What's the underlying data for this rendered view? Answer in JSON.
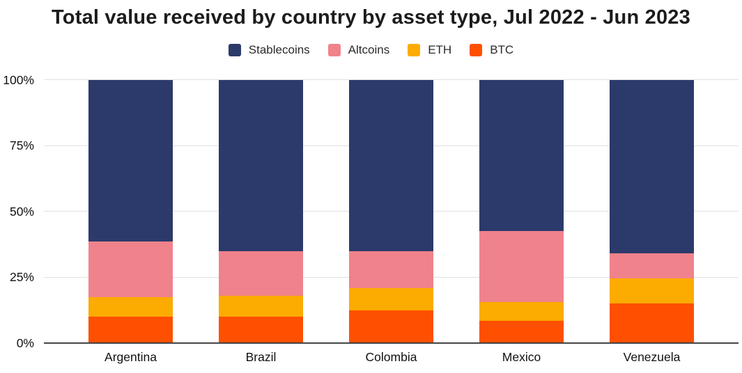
{
  "chart_data": {
    "type": "bar",
    "stacked": true,
    "percent_stacked": true,
    "title": "Total value received by country by asset type, Jul 2022 - Jun 2023",
    "xlabel": "",
    "ylabel": "",
    "ylim": [
      0,
      100
    ],
    "grid": "horizontal",
    "legend_position": "top-center",
    "categories": [
      "Argentina",
      "Brazil",
      "Colombia",
      "Mexico",
      "Venezuela"
    ],
    "series": [
      {
        "name": "Stablecoins",
        "color": "#2c3a6b",
        "values": [
          61.5,
          65.0,
          65.0,
          57.5,
          66.0
        ]
      },
      {
        "name": "Altcoins",
        "color": "#f0828c",
        "values": [
          21.0,
          17.0,
          14.0,
          27.0,
          9.5
        ]
      },
      {
        "name": "ETH",
        "color": "#fcab00",
        "values": [
          7.5,
          8.0,
          8.5,
          7.0,
          9.5
        ]
      },
      {
        "name": "BTC",
        "color": "#fe5000",
        "values": [
          10.0,
          10.0,
          12.5,
          8.5,
          15.0
        ]
      }
    ],
    "yticks": [
      {
        "value": 0,
        "label": "0%"
      },
      {
        "value": 25,
        "label": "25%"
      },
      {
        "value": 50,
        "label": "50%"
      },
      {
        "value": 75,
        "label": "75%"
      },
      {
        "value": 100,
        "label": "100%"
      }
    ]
  },
  "colors": {
    "background": "#ffffff",
    "title_text": "#1c1c1c",
    "axis_text": "#111111",
    "grid_line": "#e1e1e1",
    "axis_line": "#454545"
  }
}
